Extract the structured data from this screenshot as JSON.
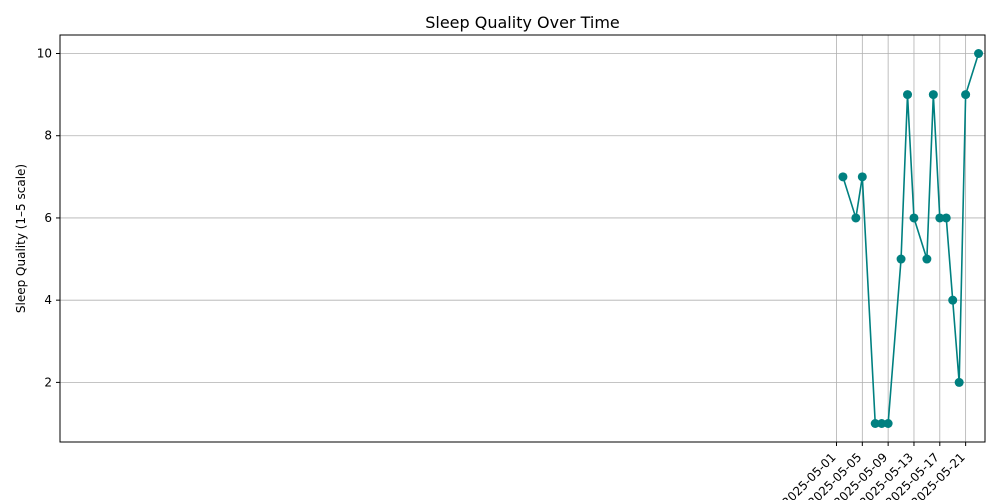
{
  "chart_data": {
    "type": "line",
    "title": "Sleep Quality Over Time",
    "xlabel": "",
    "ylabel": "Sleep Quality (1–5 scale)",
    "x_tick_labels": [
      "2025-05-01",
      "2025-05-05",
      "2025-05-09",
      "2025-05-13",
      "2025-05-17",
      "2025-05-21"
    ],
    "y_ticks": [
      2,
      4,
      6,
      8,
      10
    ],
    "xlim": [
      "2024-12-31T18:00",
      "2025-05-24T00:00"
    ],
    "ylim": [
      0.55,
      10.45
    ],
    "grid": true,
    "line_color": "#008080",
    "marker": "circle",
    "series": [
      {
        "x": [
          "2025-05-02",
          "2025-05-04",
          "2025-05-05",
          "2025-05-07",
          "2025-05-08",
          "2025-05-09",
          "2025-05-11",
          "2025-05-12",
          "2025-05-13",
          "2025-05-15",
          "2025-05-16",
          "2025-05-17",
          "2025-05-18",
          "2025-05-19",
          "2025-05-20",
          "2025-05-21",
          "2025-05-23"
        ],
        "values": [
          7,
          6,
          7,
          1,
          1,
          1,
          5,
          9,
          6,
          5,
          9,
          6,
          6,
          4,
          2,
          9,
          10
        ]
      }
    ]
  }
}
